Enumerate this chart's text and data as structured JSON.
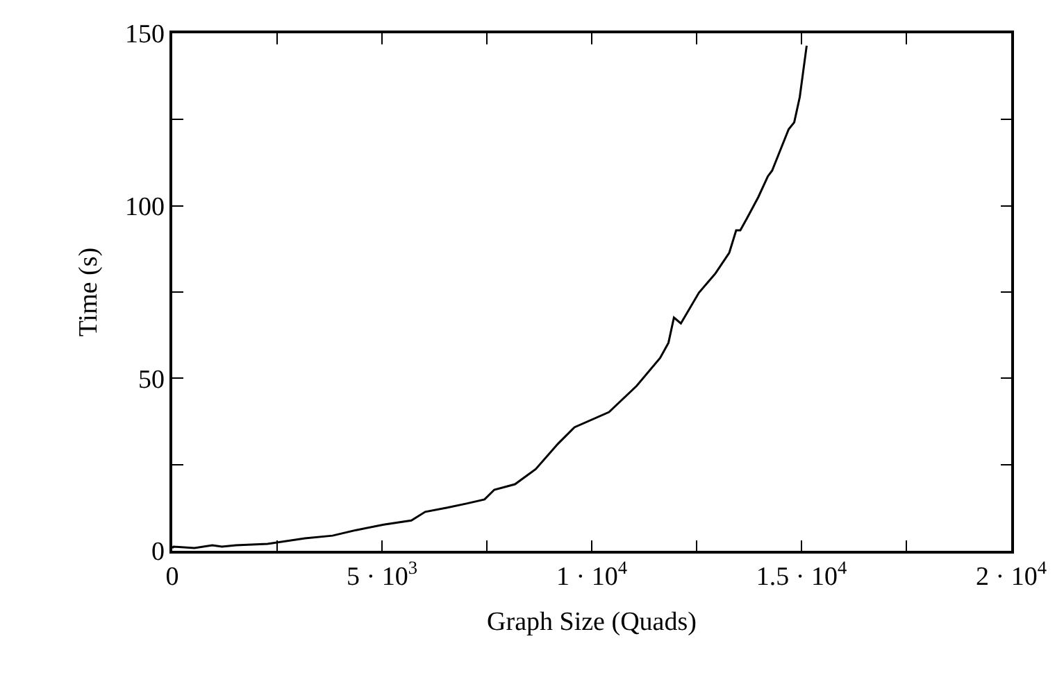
{
  "chart_data": {
    "type": "line",
    "xlabel": "Graph Size (Quads)",
    "ylabel": "Time (s)",
    "x": [
      0,
      30,
      527,
      955,
      1186,
      1516,
      2273,
      3163,
      3822,
      4382,
      5041,
      5700,
      6030,
      6557,
      7018,
      7446,
      7677,
      8171,
      8666,
      9193,
      9588,
      10412,
      11071,
      11631,
      11829,
      11960,
      12125,
      12554,
      12949,
      13279,
      13443,
      13542,
      13707,
      13970,
      14201,
      14300,
      14695,
      14827,
      14959,
      15124
    ],
    "series": [
      {
        "color": "#000000",
        "values": [
          0.8,
          1.2,
          0.8,
          1.6,
          1.2,
          1.6,
          2.0,
          3.6,
          4.4,
          6.0,
          7.6,
          8.8,
          11.3,
          12.5,
          13.7,
          14.9,
          17.7,
          19.3,
          23.7,
          31.0,
          35.8,
          40.2,
          47.8,
          55.9,
          60.3,
          67.6,
          65.9,
          74.8,
          80.4,
          86.4,
          92.9,
          92.9,
          96.5,
          102.5,
          108.6,
          110.2,
          122.2,
          124.2,
          131.5,
          146.4
        ]
      }
    ],
    "xlim": [
      0,
      20000
    ],
    "ylim": [
      0,
      150
    ],
    "xticks": [
      0,
      {
        "value": 2500,
        "label": null
      },
      {
        "value": 5000,
        "label": "5 · 10$^{3}$"
      },
      {
        "value": 7500,
        "label": null
      },
      {
        "value": 10000,
        "label": "1 · 10$^{4}$"
      },
      {
        "value": 12500,
        "label": null
      },
      {
        "value": 15000,
        "label": "1.5 · 10$^{4}$"
      },
      {
        "value": 17500,
        "label": null
      },
      {
        "value": 20000,
        "label": "2 · 10$^{4}$"
      }
    ],
    "yticks": [
      0,
      {
        "value": 25,
        "label": null
      },
      50,
      {
        "value": 75,
        "label": null
      },
      100,
      {
        "value": 125,
        "label": null
      },
      150
    ],
    "marker": "none",
    "line_style": "solid"
  }
}
